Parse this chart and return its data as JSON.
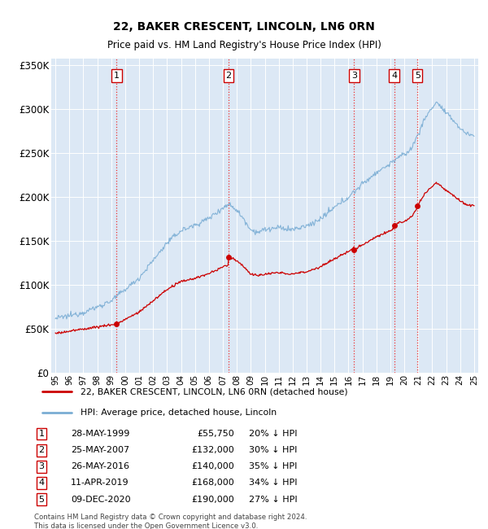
{
  "title": "22, BAKER CRESCENT, LINCOLN, LN6 0RN",
  "subtitle": "Price paid vs. HM Land Registry's House Price Index (HPI)",
  "footer_line1": "Contains HM Land Registry data © Crown copyright and database right 2024.",
  "footer_line2": "This data is licensed under the Open Government Licence v3.0.",
  "legend_label_red": "22, BAKER CRESCENT, LINCOLN, LN6 0RN (detached house)",
  "legend_label_blue": "HPI: Average price, detached house, Lincoln",
  "yticks": [
    0,
    50000,
    100000,
    150000,
    200000,
    250000,
    300000,
    350000
  ],
  "ytick_labels": [
    "£0",
    "£50K",
    "£100K",
    "£150K",
    "£200K",
    "£250K",
    "£300K",
    "£350K"
  ],
  "transactions": [
    {
      "num": 1,
      "date": "28-MAY-1999",
      "price": 55750,
      "hpi_pct": "20% ↓ HPI",
      "year": 1999.38
    },
    {
      "num": 2,
      "date": "25-MAY-2007",
      "price": 132000,
      "hpi_pct": "30% ↓ HPI",
      "year": 2007.4
    },
    {
      "num": 3,
      "date": "26-MAY-2016",
      "price": 140000,
      "hpi_pct": "35% ↓ HPI",
      "year": 2016.4
    },
    {
      "num": 4,
      "date": "11-APR-2019",
      "price": 168000,
      "hpi_pct": "34% ↓ HPI",
      "year": 2019.28
    },
    {
      "num": 5,
      "date": "09-DEC-2020",
      "price": 190000,
      "hpi_pct": "27% ↓ HPI",
      "year": 2020.94
    }
  ],
  "red_line_color": "#cc0000",
  "blue_line_color": "#7aadd4",
  "vline_color": "#ee3333",
  "background_color": "#ffffff",
  "plot_bg_color": "#dce8f5",
  "grid_color": "#ffffff"
}
